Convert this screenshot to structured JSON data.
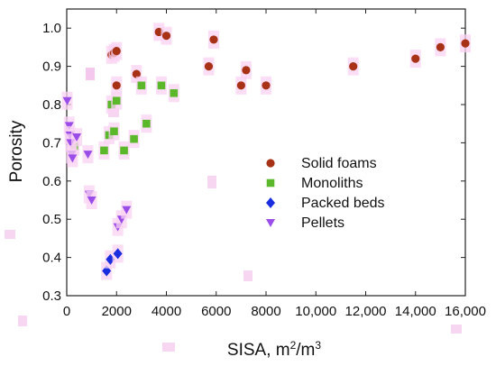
{
  "chart_data": {
    "type": "scatter",
    "xlabel": "SISA, m",
    "xlabel_sup1": "2",
    "xlabel_mid": "/m",
    "xlabel_sup2": "3",
    "ylabel": "Porosity",
    "xlim": [
      0,
      16000
    ],
    "ylim": [
      0.3,
      1.05
    ],
    "xticks": [
      0,
      2000,
      4000,
      6000,
      8000,
      10000,
      12000,
      14000,
      16000
    ],
    "xtick_labels": [
      "0",
      "2000",
      "4000",
      "6000",
      "8000",
      "10,000",
      "12,000",
      "14,000",
      "16,000"
    ],
    "yticks": [
      0.3,
      0.4,
      0.5,
      0.6,
      0.7,
      0.8,
      0.9,
      1.0
    ],
    "ytick_labels": [
      "0.3",
      "0.4",
      "0.5",
      "0.6",
      "0.7",
      "0.8",
      "0.9",
      "1.0"
    ],
    "grid": false,
    "legend_position": "center-right",
    "series": [
      {
        "name": "Solid foams",
        "marker": "circle",
        "color": "#a83216",
        "points": [
          [
            1800,
            0.93
          ],
          [
            1900,
            0.935
          ],
          [
            2000,
            0.94
          ],
          [
            2000,
            0.85
          ],
          [
            2800,
            0.88
          ],
          [
            3700,
            0.99
          ],
          [
            4000,
            0.98
          ],
          [
            5700,
            0.9
          ],
          [
            5900,
            0.97
          ],
          [
            7000,
            0.85
          ],
          [
            7200,
            0.89
          ],
          [
            8000,
            0.85
          ],
          [
            11500,
            0.9
          ],
          [
            14000,
            0.92
          ],
          [
            15000,
            0.95
          ],
          [
            16000,
            0.96
          ]
        ]
      },
      {
        "name": "Monoliths",
        "marker": "square",
        "color": "#5cb82b",
        "points": [
          [
            300,
            0.69
          ],
          [
            1500,
            0.68
          ],
          [
            1700,
            0.72
          ],
          [
            1800,
            0.8
          ],
          [
            1900,
            0.73
          ],
          [
            2000,
            0.81
          ],
          [
            2300,
            0.68
          ],
          [
            2700,
            0.71
          ],
          [
            3000,
            0.85
          ],
          [
            3200,
            0.75
          ],
          [
            3800,
            0.85
          ],
          [
            4300,
            0.83
          ]
        ]
      },
      {
        "name": "Packed beds",
        "marker": "diamond",
        "color": "#1a2ee0",
        "points": [
          [
            1600,
            0.365
          ],
          [
            1750,
            0.395
          ],
          [
            2050,
            0.41
          ]
        ]
      },
      {
        "name": "Pellets",
        "marker": "triangle-down",
        "color": "#9a4de8",
        "points": [
          [
            20,
            0.81
          ],
          [
            100,
            0.745
          ],
          [
            130,
            0.72
          ],
          [
            160,
            0.7
          ],
          [
            200,
            0.67
          ],
          [
            230,
            0.66
          ],
          [
            400,
            0.715
          ],
          [
            850,
            0.67
          ],
          [
            900,
            0.565
          ],
          [
            1000,
            0.55
          ],
          [
            2050,
            0.48
          ],
          [
            2200,
            0.5
          ],
          [
            2400,
            0.525
          ]
        ]
      }
    ]
  }
}
